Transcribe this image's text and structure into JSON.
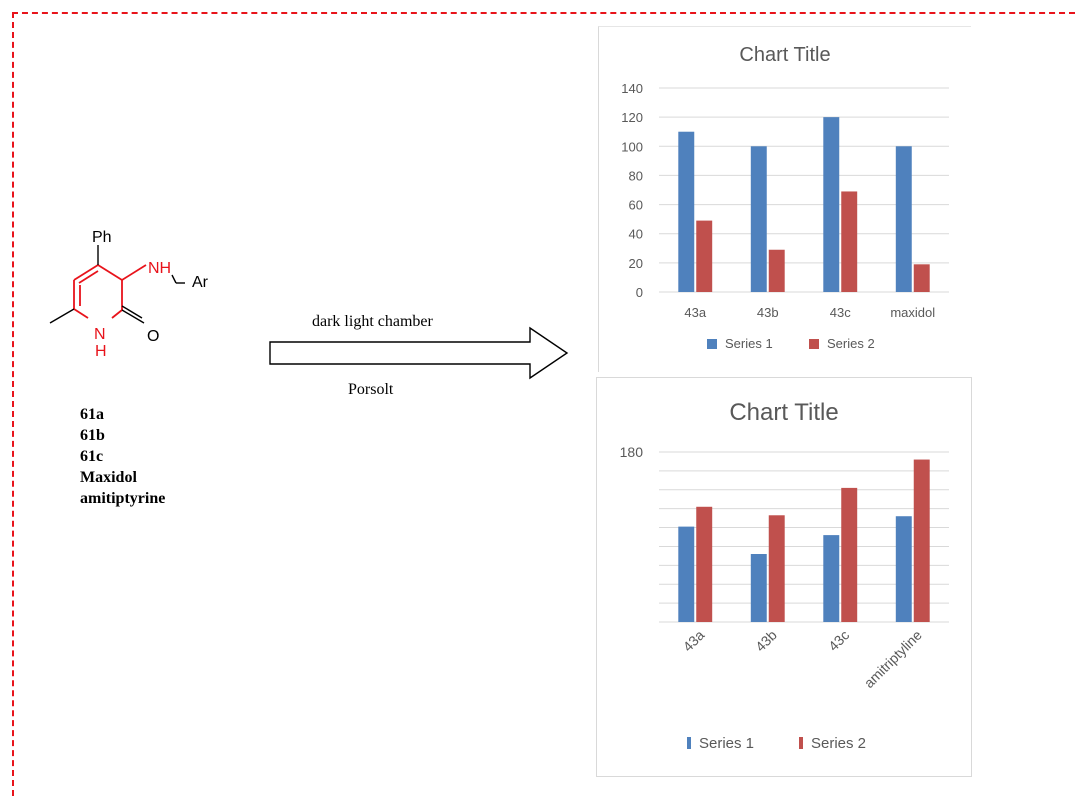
{
  "scheme": {
    "substituents": {
      "top": "Ph",
      "amine": "NH",
      "aryl": "Ar",
      "carbonyl_o": "O",
      "ring_n": "N",
      "ring_h": "H"
    },
    "compounds": [
      "61a",
      "61b",
      "61c",
      "Maxidol",
      "amitiptyrine"
    ],
    "arrow_label_top": "dark light chamber",
    "arrow_label_bottom": "Porsolt",
    "highlight_color": "#e8131b"
  },
  "colors": {
    "series1": "#4f81bd",
    "series2": "#c0504d",
    "frame": "#e8131b"
  },
  "chart_data": [
    {
      "type": "bar",
      "title": "Chart Title",
      "categories": [
        "43a",
        "43b",
        "43c",
        "maxidol"
      ],
      "series": [
        {
          "name": "Series 1",
          "values": [
            110,
            100,
            120,
            100
          ]
        },
        {
          "name": "Series 2",
          "values": [
            49,
            29,
            69,
            19
          ]
        }
      ],
      "yticks": [
        0,
        20,
        40,
        60,
        80,
        100,
        120,
        140
      ],
      "ylim": [
        0,
        140
      ],
      "grid": true,
      "legend": "bottom"
    },
    {
      "type": "bar",
      "title": "Chart Title",
      "categories": [
        "43a",
        "43b",
        "43c",
        "amitriptyline"
      ],
      "series": [
        {
          "name": "Series 1",
          "values": [
            101,
            72,
            92,
            112
          ]
        },
        {
          "name": "Series 2",
          "values": [
            122,
            113,
            142,
            172
          ]
        }
      ],
      "yticks": [
        0,
        20,
        40,
        60,
        80,
        100,
        120,
        140,
        160,
        180
      ],
      "yticks_text": [
        "",
        "",
        "",
        "",
        "",
        "",
        "",
        "",
        "",
        "180"
      ],
      "ylim": [
        0,
        180
      ],
      "grid": true,
      "legend": "bottom"
    }
  ]
}
